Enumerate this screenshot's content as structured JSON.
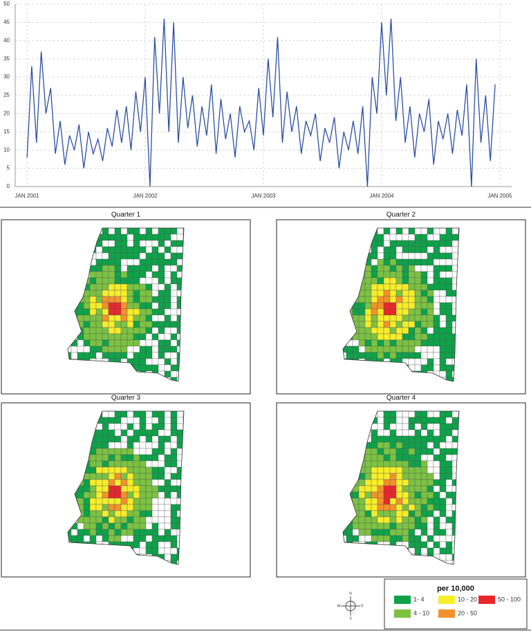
{
  "chart_data": {
    "type": "line",
    "x": [
      2001,
      2001.04,
      2001.08,
      2001.12,
      2001.16,
      2001.2,
      2001.24,
      2001.28,
      2001.32,
      2001.36,
      2001.4,
      2001.44,
      2001.48,
      2001.52,
      2001.56,
      2001.6,
      2001.64,
      2001.68,
      2001.72,
      2001.76,
      2001.8,
      2001.84,
      2001.88,
      2001.92,
      2001.96,
      2002,
      2002.04,
      2002.08,
      2002.12,
      2002.16,
      2002.2,
      2002.24,
      2002.28,
      2002.32,
      2002.36,
      2002.4,
      2002.44,
      2002.48,
      2002.52,
      2002.56,
      2002.6,
      2002.64,
      2002.68,
      2002.72,
      2002.76,
      2002.8,
      2002.84,
      2002.88,
      2002.92,
      2002.96,
      2003,
      2003.04,
      2003.08,
      2003.12,
      2003.16,
      2003.2,
      2003.24,
      2003.28,
      2003.32,
      2003.36,
      2003.4,
      2003.44,
      2003.48,
      2003.52,
      2003.56,
      2003.6,
      2003.64,
      2003.68,
      2003.72,
      2003.76,
      2003.8,
      2003.84,
      2003.88,
      2003.92,
      2003.96,
      2004,
      2004.04,
      2004.08,
      2004.12,
      2004.16,
      2004.2,
      2004.24,
      2004.28,
      2004.32,
      2004.36,
      2004.4,
      2004.44,
      2004.48,
      2004.52,
      2004.56,
      2004.6,
      2004.64,
      2004.68,
      2004.72,
      2004.76,
      2004.8,
      2004.84,
      2004.88,
      2004.92,
      2004.96
    ],
    "series": [
      {
        "color": "#2b4ea2",
        "values": [
          8,
          33,
          12,
          37,
          20,
          27,
          9,
          18,
          6,
          14,
          10,
          17,
          5,
          15,
          9,
          13,
          7,
          16,
          11,
          21,
          12,
          22,
          10,
          26,
          15,
          30,
          0,
          41,
          20,
          46,
          15,
          45,
          12,
          30,
          16,
          25,
          11,
          22,
          14,
          28,
          9,
          24,
          13,
          20,
          8,
          22,
          15,
          18,
          10,
          27,
          14,
          35,
          19,
          41,
          12,
          26,
          15,
          22,
          9,
          18,
          14,
          20,
          7,
          16,
          12,
          19,
          5,
          15,
          10,
          18,
          9,
          22,
          0,
          30,
          20,
          45,
          25,
          46,
          18,
          30,
          12,
          22,
          8,
          20,
          15,
          24,
          6,
          18,
          13,
          20,
          9,
          21,
          14,
          28,
          0,
          35,
          12,
          25,
          7,
          28
        ]
      }
    ],
    "xlim": [
      2000.9,
      2005.1
    ],
    "xticks": [
      {
        "value": 2001,
        "label": "JAN 2001"
      },
      {
        "value": 2002,
        "label": "JAN 2002"
      },
      {
        "value": 2003,
        "label": "JAN 2003"
      },
      {
        "value": 2004,
        "label": "JAN 2004"
      },
      {
        "value": 2005,
        "label": "JAN 2005"
      }
    ],
    "ylim": [
      0,
      50
    ],
    "yticks": [
      0,
      5,
      10,
      15,
      20,
      25,
      30,
      35,
      40,
      45,
      50
    ],
    "grid": true
  },
  "maps": {
    "titles": [
      "Quarter 1",
      "Quarter 2",
      "Quarter 3",
      "Quarter 4"
    ],
    "legend": {
      "title": "per 10,000",
      "items": [
        {
          "label": "1- 4",
          "color": "#0ea24a"
        },
        {
          "label": "4 - 10",
          "color": "#7cc242"
        },
        {
          "label": "10 - 20",
          "color": "#f7ee2a"
        },
        {
          "label": "20 - 50",
          "color": "#f4922a"
        },
        {
          "label": "50 - 100",
          "color": "#e8262c"
        }
      ]
    },
    "compass": [
      "N",
      "E",
      "S",
      "W"
    ]
  }
}
